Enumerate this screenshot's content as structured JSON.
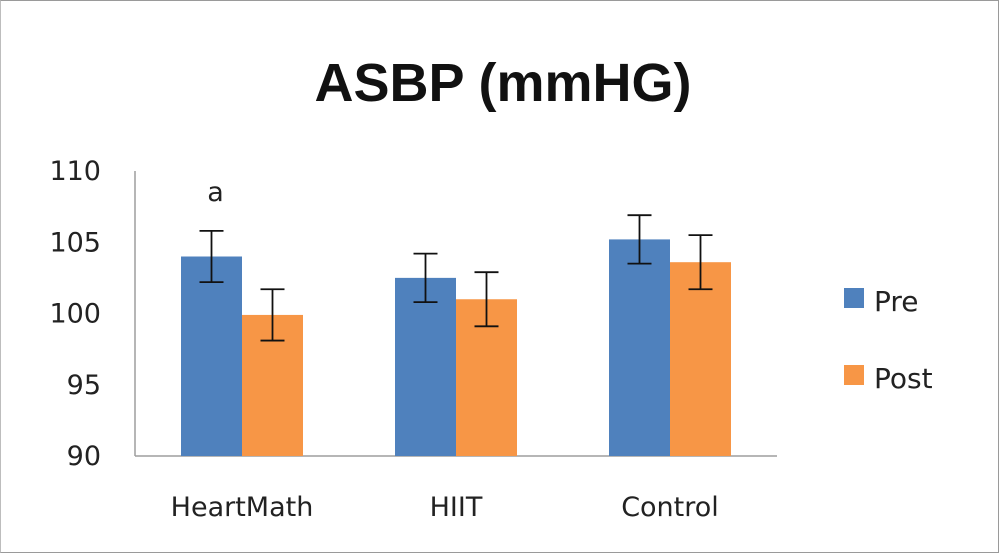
{
  "chart_data": {
    "type": "bar",
    "title": "ASBP (mmHG)",
    "xlabel": "",
    "ylabel": "",
    "categories": [
      "HeartMath",
      "HIIT",
      "Control"
    ],
    "ylim": [
      90,
      110
    ],
    "yticks": [
      90,
      95,
      100,
      105,
      110
    ],
    "series": [
      {
        "name": "Pre",
        "color": "#4f81bd",
        "values": [
          104.0,
          102.5,
          105.2
        ],
        "errors": [
          1.8,
          1.7,
          1.7
        ]
      },
      {
        "name": "Post",
        "color": "#f79646",
        "values": [
          99.9,
          101.0,
          103.6
        ],
        "errors": [
          1.8,
          1.9,
          1.9
        ]
      }
    ],
    "annotations": [
      {
        "category": "HeartMath",
        "text": "a"
      }
    ],
    "legend": "right",
    "grid": false
  }
}
